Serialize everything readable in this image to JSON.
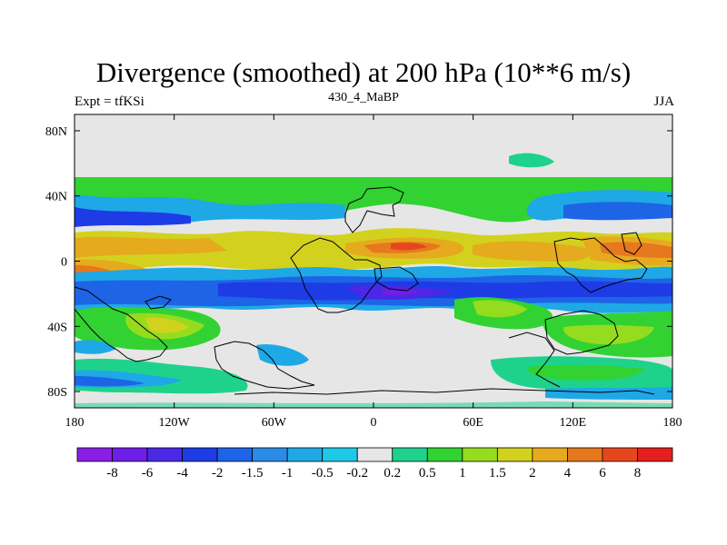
{
  "chart_data": {
    "type": "filled-contour-map",
    "title": "Divergence (smoothed) at 200 hPa (10**6 m/s)",
    "left_label": "Expt = tfKSi",
    "center_label": "430_4_MaBP",
    "right_label": "JJA",
    "x_ticks": [
      "180",
      "120W",
      "60W",
      "0",
      "60E",
      "120E",
      "180"
    ],
    "y_ticks": [
      "80N",
      "40N",
      "0",
      "40S",
      "80S"
    ],
    "xlim": [
      -180,
      180
    ],
    "ylim": [
      -90,
      90
    ],
    "levels": [
      "-8",
      "-6",
      "-4",
      "-2",
      "-1.5",
      "-1",
      "-0.5",
      "-0.2",
      "0.2",
      "0.5",
      "1",
      "1.5",
      "2",
      "4",
      "6",
      "8"
    ],
    "colors": [
      "#8a1ee6",
      "#6e1ee6",
      "#4a28e6",
      "#1e3ce6",
      "#1e64e6",
      "#2a8ce6",
      "#1ea8e6",
      "#1ec8e6",
      "#e6e6e6",
      "#1ed28c",
      "#32d232",
      "#96dc1e",
      "#d2d21e",
      "#e6aa1e",
      "#e6781e",
      "#e6461e",
      "#e61e1e"
    ]
  }
}
